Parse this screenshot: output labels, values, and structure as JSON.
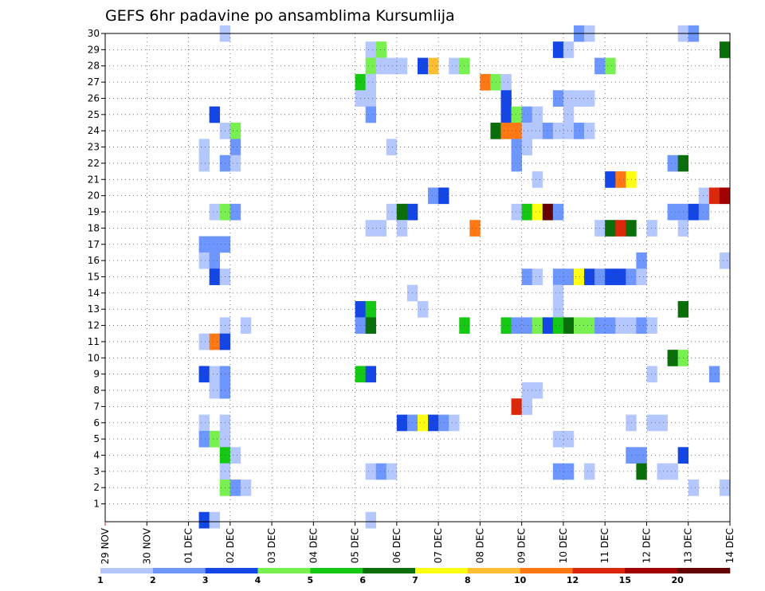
{
  "chart_data": {
    "type": "heatmap",
    "title": "GEFS 6hr padavine po ansamblima Kursumlija",
    "xlabel": "",
    "ylabel": "",
    "x_ticks": [
      "29 NOV",
      "30 NOV",
      "01 DEC",
      "02 DEC",
      "03 DEC",
      "04 DEC",
      "05 DEC",
      "06 DEC",
      "07 DEC",
      "08 DEC",
      "09 DEC",
      "10 DEC",
      "11 DEC",
      "12 DEC",
      "13 DEC",
      "14 DEC"
    ],
    "x_range_days": [
      0,
      15
    ],
    "y_ticks": [
      1,
      2,
      3,
      4,
      5,
      6,
      7,
      8,
      9,
      10,
      11,
      12,
      13,
      14,
      15,
      16,
      17,
      18,
      19,
      20,
      21,
      22,
      23,
      24,
      25,
      26,
      27,
      28,
      29,
      30
    ],
    "y_range": [
      0,
      30
    ],
    "grid": true,
    "legend_position": "bottom",
    "legend": {
      "thresholds": [
        "1",
        "2",
        "3",
        "4",
        "5",
        "6",
        "7",
        "8",
        "10",
        "12",
        "15",
        "20"
      ],
      "colors": [
        "#b4c8ff",
        "#6e96ff",
        "#1446e6",
        "#78f050",
        "#14c814",
        "#0a6e0a",
        "#ffff14",
        "#ffbe32",
        "#ff7814",
        "#dc280a",
        "#a00000",
        "#640000"
      ]
    },
    "cells": [
      {
        "member": 30,
        "step": 11,
        "level": 1
      },
      {
        "member": 30,
        "step": 45,
        "level": 2
      },
      {
        "member": 30,
        "step": 46,
        "level": 1
      },
      {
        "member": 30,
        "step": 55,
        "level": 1
      },
      {
        "member": 30,
        "step": 56,
        "level": 2
      },
      {
        "member": 29,
        "step": 25,
        "level": 1
      },
      {
        "member": 29,
        "step": 26,
        "level": 4
      },
      {
        "member": 29,
        "step": 43,
        "level": 3
      },
      {
        "member": 29,
        "step": 44,
        "level": 1
      },
      {
        "member": 29,
        "step": 59,
        "level": 6
      },
      {
        "member": 28,
        "step": 25,
        "level": 4
      },
      {
        "member": 28,
        "step": 26,
        "level": 1
      },
      {
        "member": 28,
        "step": 27,
        "level": 1
      },
      {
        "member": 28,
        "step": 28,
        "level": 1
      },
      {
        "member": 28,
        "step": 30,
        "level": 3
      },
      {
        "member": 28,
        "step": 31,
        "level": 8
      },
      {
        "member": 28,
        "step": 33,
        "level": 1
      },
      {
        "member": 28,
        "step": 34,
        "level": 4
      },
      {
        "member": 28,
        "step": 47,
        "level": 2
      },
      {
        "member": 28,
        "step": 48,
        "level": 4
      },
      {
        "member": 27,
        "step": 24,
        "level": 5
      },
      {
        "member": 27,
        "step": 25,
        "level": 1
      },
      {
        "member": 27,
        "step": 36,
        "level": 9
      },
      {
        "member": 27,
        "step": 37,
        "level": 4
      },
      {
        "member": 27,
        "step": 38,
        "level": 1
      },
      {
        "member": 26,
        "step": 24,
        "level": 1
      },
      {
        "member": 26,
        "step": 25,
        "level": 1
      },
      {
        "member": 26,
        "step": 38,
        "level": 3
      },
      {
        "member": 26,
        "step": 43,
        "level": 2
      },
      {
        "member": 26,
        "step": 44,
        "level": 1
      },
      {
        "member": 26,
        "step": 45,
        "level": 1
      },
      {
        "member": 26,
        "step": 46,
        "level": 1
      },
      {
        "member": 25,
        "step": 10,
        "level": 3
      },
      {
        "member": 25,
        "step": 25,
        "level": 2
      },
      {
        "member": 25,
        "step": 38,
        "level": 3
      },
      {
        "member": 25,
        "step": 39,
        "level": 4
      },
      {
        "member": 25,
        "step": 40,
        "level": 2
      },
      {
        "member": 25,
        "step": 41,
        "level": 1
      },
      {
        "member": 25,
        "step": 44,
        "level": 1
      },
      {
        "member": 24,
        "step": 11,
        "level": 1
      },
      {
        "member": 24,
        "step": 12,
        "level": 4
      },
      {
        "member": 24,
        "step": 37,
        "level": 6
      },
      {
        "member": 24,
        "step": 38,
        "level": 9
      },
      {
        "member": 24,
        "step": 39,
        "level": 9
      },
      {
        "member": 24,
        "step": 40,
        "level": 1
      },
      {
        "member": 24,
        "step": 41,
        "level": 1
      },
      {
        "member": 24,
        "step": 42,
        "level": 2
      },
      {
        "member": 24,
        "step": 43,
        "level": 1
      },
      {
        "member": 24,
        "step": 44,
        "level": 1
      },
      {
        "member": 24,
        "step": 45,
        "level": 2
      },
      {
        "member": 24,
        "step": 46,
        "level": 1
      },
      {
        "member": 23,
        "step": 9,
        "level": 1
      },
      {
        "member": 23,
        "step": 12,
        "level": 2
      },
      {
        "member": 23,
        "step": 27,
        "level": 1
      },
      {
        "member": 23,
        "step": 39,
        "level": 2
      },
      {
        "member": 23,
        "step": 40,
        "level": 1
      },
      {
        "member": 22,
        "step": 9,
        "level": 1
      },
      {
        "member": 22,
        "step": 11,
        "level": 2
      },
      {
        "member": 22,
        "step": 12,
        "level": 1
      },
      {
        "member": 22,
        "step": 39,
        "level": 2
      },
      {
        "member": 22,
        "step": 54,
        "level": 2
      },
      {
        "member": 22,
        "step": 55,
        "level": 6
      },
      {
        "member": 21,
        "step": 41,
        "level": 1
      },
      {
        "member": 21,
        "step": 48,
        "level": 3
      },
      {
        "member": 21,
        "step": 49,
        "level": 9
      },
      {
        "member": 21,
        "step": 50,
        "level": 7
      },
      {
        "member": 20,
        "step": 31,
        "level": 2
      },
      {
        "member": 20,
        "step": 32,
        "level": 3
      },
      {
        "member": 20,
        "step": 57,
        "level": 1
      },
      {
        "member": 20,
        "step": 58,
        "level": 10
      },
      {
        "member": 20,
        "step": 59,
        "level": 11
      },
      {
        "member": 19,
        "step": 10,
        "level": 1
      },
      {
        "member": 19,
        "step": 11,
        "level": 4
      },
      {
        "member": 19,
        "step": 12,
        "level": 2
      },
      {
        "member": 19,
        "step": 27,
        "level": 1
      },
      {
        "member": 19,
        "step": 28,
        "level": 6
      },
      {
        "member": 19,
        "step": 29,
        "level": 3
      },
      {
        "member": 19,
        "step": 39,
        "level": 1
      },
      {
        "member": 19,
        "step": 40,
        "level": 5
      },
      {
        "member": 19,
        "step": 41,
        "level": 7
      },
      {
        "member": 19,
        "step": 42,
        "level": 12
      },
      {
        "member": 19,
        "step": 43,
        "level": 2
      },
      {
        "member": 19,
        "step": 54,
        "level": 2
      },
      {
        "member": 19,
        "step": 55,
        "level": 2
      },
      {
        "member": 19,
        "step": 56,
        "level": 3
      },
      {
        "member": 19,
        "step": 57,
        "level": 2
      },
      {
        "member": 18,
        "step": 25,
        "level": 1
      },
      {
        "member": 18,
        "step": 26,
        "level": 1
      },
      {
        "member": 18,
        "step": 28,
        "level": 1
      },
      {
        "member": 18,
        "step": 35,
        "level": 9
      },
      {
        "member": 18,
        "step": 47,
        "level": 1
      },
      {
        "member": 18,
        "step": 48,
        "level": 6
      },
      {
        "member": 18,
        "step": 49,
        "level": 10
      },
      {
        "member": 18,
        "step": 50,
        "level": 6
      },
      {
        "member": 18,
        "step": 52,
        "level": 1
      },
      {
        "member": 18,
        "step": 55,
        "level": 1
      },
      {
        "member": 17,
        "step": 9,
        "level": 2
      },
      {
        "member": 17,
        "step": 10,
        "level": 2
      },
      {
        "member": 17,
        "step": 11,
        "level": 2
      },
      {
        "member": 16,
        "step": 9,
        "level": 1
      },
      {
        "member": 16,
        "step": 10,
        "level": 2
      },
      {
        "member": 16,
        "step": 51,
        "level": 2
      },
      {
        "member": 16,
        "step": 59,
        "level": 1
      },
      {
        "member": 15,
        "step": 10,
        "level": 3
      },
      {
        "member": 15,
        "step": 11,
        "level": 1
      },
      {
        "member": 15,
        "step": 40,
        "level": 2
      },
      {
        "member": 15,
        "step": 41,
        "level": 1
      },
      {
        "member": 15,
        "step": 43,
        "level": 2
      },
      {
        "member": 15,
        "step": 44,
        "level": 2
      },
      {
        "member": 15,
        "step": 45,
        "level": 7
      },
      {
        "member": 15,
        "step": 46,
        "level": 3
      },
      {
        "member": 15,
        "step": 47,
        "level": 2
      },
      {
        "member": 15,
        "step": 48,
        "level": 3
      },
      {
        "member": 15,
        "step": 49,
        "level": 3
      },
      {
        "member": 15,
        "step": 50,
        "level": 2
      },
      {
        "member": 15,
        "step": 51,
        "level": 1
      },
      {
        "member": 14,
        "step": 29,
        "level": 1
      },
      {
        "member": 14,
        "step": 43,
        "level": 1
      },
      {
        "member": 13,
        "step": 24,
        "level": 3
      },
      {
        "member": 13,
        "step": 25,
        "level": 5
      },
      {
        "member": 13,
        "step": 30,
        "level": 1
      },
      {
        "member": 13,
        "step": 43,
        "level": 1
      },
      {
        "member": 13,
        "step": 55,
        "level": 6
      },
      {
        "member": 12,
        "step": 11,
        "level": 1
      },
      {
        "member": 12,
        "step": 13,
        "level": 1
      },
      {
        "member": 12,
        "step": 24,
        "level": 2
      },
      {
        "member": 12,
        "step": 25,
        "level": 6
      },
      {
        "member": 12,
        "step": 34,
        "level": 5
      },
      {
        "member": 12,
        "step": 38,
        "level": 5
      },
      {
        "member": 12,
        "step": 39,
        "level": 2
      },
      {
        "member": 12,
        "step": 40,
        "level": 2
      },
      {
        "member": 12,
        "step": 41,
        "level": 4
      },
      {
        "member": 12,
        "step": 42,
        "level": 3
      },
      {
        "member": 12,
        "step": 43,
        "level": 5
      },
      {
        "member": 12,
        "step": 44,
        "level": 6
      },
      {
        "member": 12,
        "step": 45,
        "level": 4
      },
      {
        "member": 12,
        "step": 46,
        "level": 4
      },
      {
        "member": 12,
        "step": 47,
        "level": 2
      },
      {
        "member": 12,
        "step": 48,
        "level": 2
      },
      {
        "member": 12,
        "step": 49,
        "level": 1
      },
      {
        "member": 12,
        "step": 50,
        "level": 1
      },
      {
        "member": 12,
        "step": 51,
        "level": 2
      },
      {
        "member": 12,
        "step": 52,
        "level": 1
      },
      {
        "member": 11,
        "step": 9,
        "level": 1
      },
      {
        "member": 11,
        "step": 10,
        "level": 9
      },
      {
        "member": 11,
        "step": 11,
        "level": 3
      },
      {
        "member": 10,
        "step": 54,
        "level": 6
      },
      {
        "member": 10,
        "step": 55,
        "level": 4
      },
      {
        "member": 9,
        "step": 9,
        "level": 3
      },
      {
        "member": 9,
        "step": 10,
        "level": 1
      },
      {
        "member": 9,
        "step": 11,
        "level": 2
      },
      {
        "member": 9,
        "step": 24,
        "level": 5
      },
      {
        "member": 9,
        "step": 25,
        "level": 3
      },
      {
        "member": 9,
        "step": 52,
        "level": 1
      },
      {
        "member": 9,
        "step": 58,
        "level": 2
      },
      {
        "member": 8,
        "step": 10,
        "level": 1
      },
      {
        "member": 8,
        "step": 11,
        "level": 2
      },
      {
        "member": 8,
        "step": 40,
        "level": 1
      },
      {
        "member": 8,
        "step": 41,
        "level": 1
      },
      {
        "member": 7,
        "step": 39,
        "level": 10
      },
      {
        "member": 7,
        "step": 40,
        "level": 1
      },
      {
        "member": 6,
        "step": 9,
        "level": 1
      },
      {
        "member": 6,
        "step": 11,
        "level": 1
      },
      {
        "member": 6,
        "step": 28,
        "level": 3
      },
      {
        "member": 6,
        "step": 29,
        "level": 2
      },
      {
        "member": 6,
        "step": 30,
        "level": 7
      },
      {
        "member": 6,
        "step": 31,
        "level": 3
      },
      {
        "member": 6,
        "step": 32,
        "level": 2
      },
      {
        "member": 6,
        "step": 33,
        "level": 1
      },
      {
        "member": 6,
        "step": 50,
        "level": 1
      },
      {
        "member": 6,
        "step": 52,
        "level": 1
      },
      {
        "member": 6,
        "step": 53,
        "level": 1
      },
      {
        "member": 5,
        "step": 9,
        "level": 2
      },
      {
        "member": 5,
        "step": 10,
        "level": 4
      },
      {
        "member": 5,
        "step": 11,
        "level": 1
      },
      {
        "member": 5,
        "step": 43,
        "level": 1
      },
      {
        "member": 5,
        "step": 44,
        "level": 1
      },
      {
        "member": 4,
        "step": 11,
        "level": 5
      },
      {
        "member": 4,
        "step": 12,
        "level": 1
      },
      {
        "member": 4,
        "step": 50,
        "level": 2
      },
      {
        "member": 4,
        "step": 51,
        "level": 2
      },
      {
        "member": 4,
        "step": 55,
        "level": 3
      },
      {
        "member": 3,
        "step": 11,
        "level": 1
      },
      {
        "member": 3,
        "step": 25,
        "level": 1
      },
      {
        "member": 3,
        "step": 26,
        "level": 2
      },
      {
        "member": 3,
        "step": 27,
        "level": 1
      },
      {
        "member": 3,
        "step": 43,
        "level": 2
      },
      {
        "member": 3,
        "step": 44,
        "level": 2
      },
      {
        "member": 3,
        "step": 46,
        "level": 1
      },
      {
        "member": 3,
        "step": 51,
        "level": 6
      },
      {
        "member": 3,
        "step": 53,
        "level": 1
      },
      {
        "member": 3,
        "step": 54,
        "level": 1
      },
      {
        "member": 2,
        "step": 11,
        "level": 4
      },
      {
        "member": 2,
        "step": 12,
        "level": 2
      },
      {
        "member": 2,
        "step": 13,
        "level": 1
      },
      {
        "member": 2,
        "step": 56,
        "level": 1
      },
      {
        "member": 2,
        "step": 59,
        "level": 1
      },
      {
        "member": 0,
        "step": 9,
        "level": 3
      },
      {
        "member": 0,
        "step": 10,
        "level": 1
      },
      {
        "member": 0,
        "step": 25,
        "level": 1
      }
    ]
  }
}
